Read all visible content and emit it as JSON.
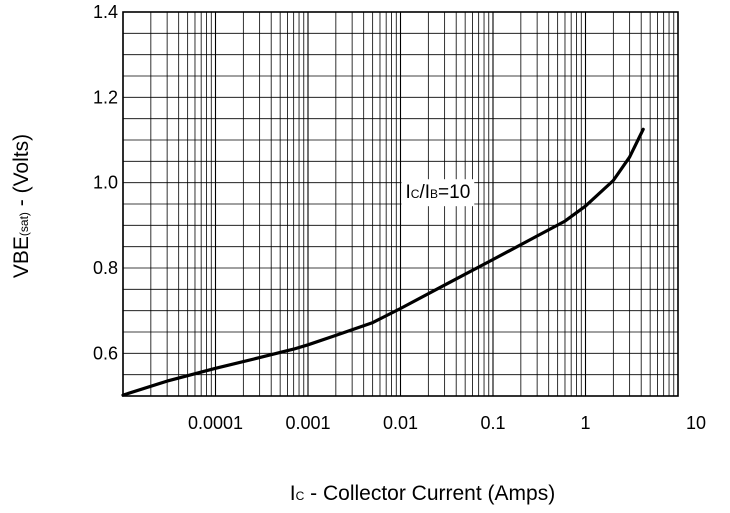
{
  "chart_data": {
    "type": "line",
    "title": "",
    "xlabel": "IC - Collector Current (Amps)",
    "xlabel_parts": {
      "main_letter": "I",
      "subscript": "C",
      "rest": " - Collector Current (Amps)"
    },
    "ylabel": "VBE(sat) - (Volts)",
    "ylabel_parts": {
      "main": "VBE",
      "subscript": "(sat)",
      "rest": " - (Volts)"
    },
    "x_scale": "log",
    "xlim": [
      1e-05,
      10
    ],
    "ylim": [
      0.5,
      1.4
    ],
    "grid": true,
    "x_ticks": [
      {
        "value": 0.0001,
        "label": "0.0001"
      },
      {
        "value": 0.001,
        "label": "0.001"
      },
      {
        "value": 0.01,
        "label": "0.01"
      },
      {
        "value": 0.1,
        "label": "0.1"
      },
      {
        "value": 1,
        "label": "1"
      },
      {
        "value": 10,
        "label": "10"
      }
    ],
    "y_ticks": [
      {
        "value": 0.6,
        "label": "0.6"
      },
      {
        "value": 0.8,
        "label": "0.8"
      },
      {
        "value": 1.0,
        "label": "1.0"
      },
      {
        "value": 1.2,
        "label": "1.2"
      },
      {
        "value": 1.4,
        "label": "1.4"
      }
    ],
    "annotation": {
      "text": "IC/IB=10",
      "parts": [
        {
          "text": "I",
          "sub": false
        },
        {
          "text": "C",
          "sub": true
        },
        {
          "text": "/I",
          "sub": false
        },
        {
          "text": "B",
          "sub": true
        },
        {
          "text": "=10",
          "sub": false
        }
      ],
      "x": 0.01,
      "y": 0.98
    },
    "series": [
      {
        "points": [
          {
            "x": 1e-05,
            "y": 0.502
          },
          {
            "x": 3e-05,
            "y": 0.535
          },
          {
            "x": 0.0001,
            "y": 0.565
          },
          {
            "x": 0.0003,
            "y": 0.59
          },
          {
            "x": 0.0007,
            "y": 0.61
          },
          {
            "x": 0.001,
            "y": 0.62
          },
          {
            "x": 0.002,
            "y": 0.642
          },
          {
            "x": 0.005,
            "y": 0.672
          },
          {
            "x": 0.01,
            "y": 0.705
          },
          {
            "x": 0.03,
            "y": 0.76
          },
          {
            "x": 0.1,
            "y": 0.82
          },
          {
            "x": 0.3,
            "y": 0.875
          },
          {
            "x": 0.6,
            "y": 0.91
          },
          {
            "x": 1,
            "y": 0.945
          },
          {
            "x": 2,
            "y": 1.005
          },
          {
            "x": 3,
            "y": 1.06
          },
          {
            "x": 4.2,
            "y": 1.125
          }
        ]
      }
    ]
  }
}
